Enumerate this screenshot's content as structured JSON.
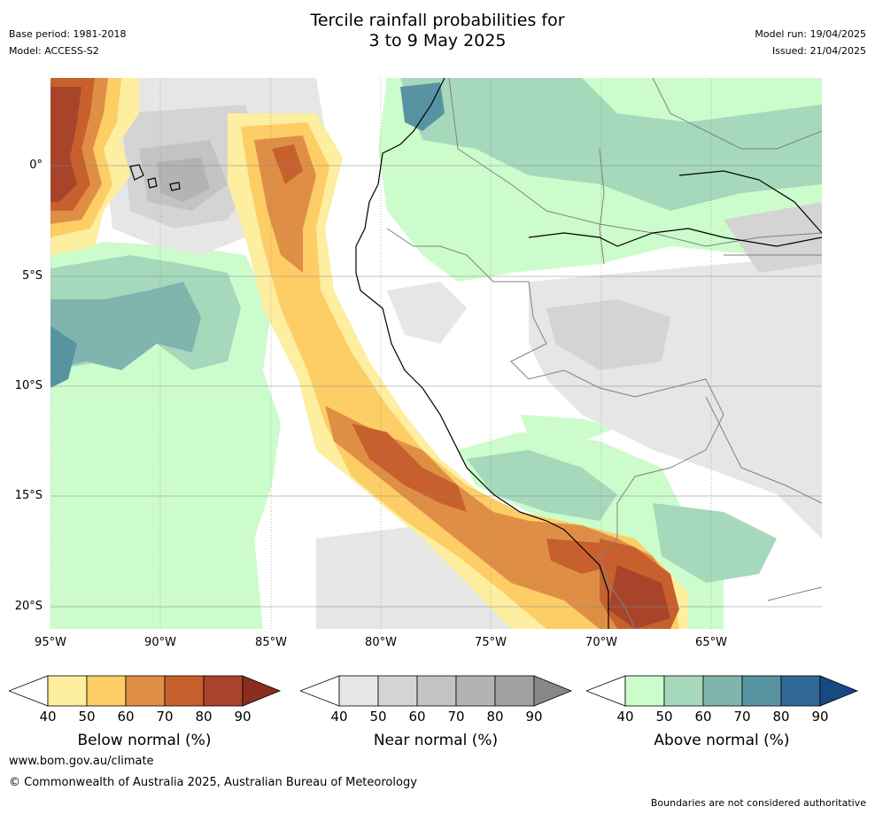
{
  "header": {
    "title_line1": "Tercile rainfall probabilities for",
    "title_line2": "3 to 9 May 2025",
    "base_period": "Base period: 1981-2018",
    "model": "Model: ACCESS-S2",
    "model_run": "Model run: 19/04/2025",
    "issued": "Issued: 21/04/2025"
  },
  "map": {
    "lat_labels": [
      "0°",
      "5°S",
      "10°S",
      "15°S",
      "20°S"
    ],
    "lon_labels": [
      "95°W",
      "90°W",
      "85°W",
      "80°W",
      "75°W",
      "70°W",
      "65°W"
    ],
    "colors": {
      "below": [
        "#fdeea0",
        "#fdcd66",
        "#df8f45",
        "#c8602e",
        "#a8442a",
        "#8a2d1e"
      ],
      "near": [
        "#e6e6e6",
        "#d4d4d4",
        "#c3c3c3",
        "#b3b3b3",
        "#a0a0a0",
        "#888888"
      ],
      "above": [
        "#ccfccc",
        "#a6d8bb",
        "#80b5ae",
        "#5893a2",
        "#306896",
        "#174a82"
      ],
      "land_border": "#808080",
      "coast": "#000000"
    }
  },
  "colorbars": [
    {
      "title": "Below normal (%)",
      "ticks": [
        "40",
        "50",
        "60",
        "70",
        "80",
        "90"
      ]
    },
    {
      "title": "Near normal (%)",
      "ticks": [
        "40",
        "50",
        "60",
        "70",
        "80",
        "90"
      ]
    },
    {
      "title": "Above normal (%)",
      "ticks": [
        "40",
        "50",
        "60",
        "70",
        "80",
        "90"
      ]
    }
  ],
  "footer": {
    "website": "www.bom.gov.au/climate",
    "copyright": "© Commonwealth of Australia 2025, Australian Bureau of Meteorology",
    "disclaimer": "Boundaries are not considered authoritative"
  }
}
